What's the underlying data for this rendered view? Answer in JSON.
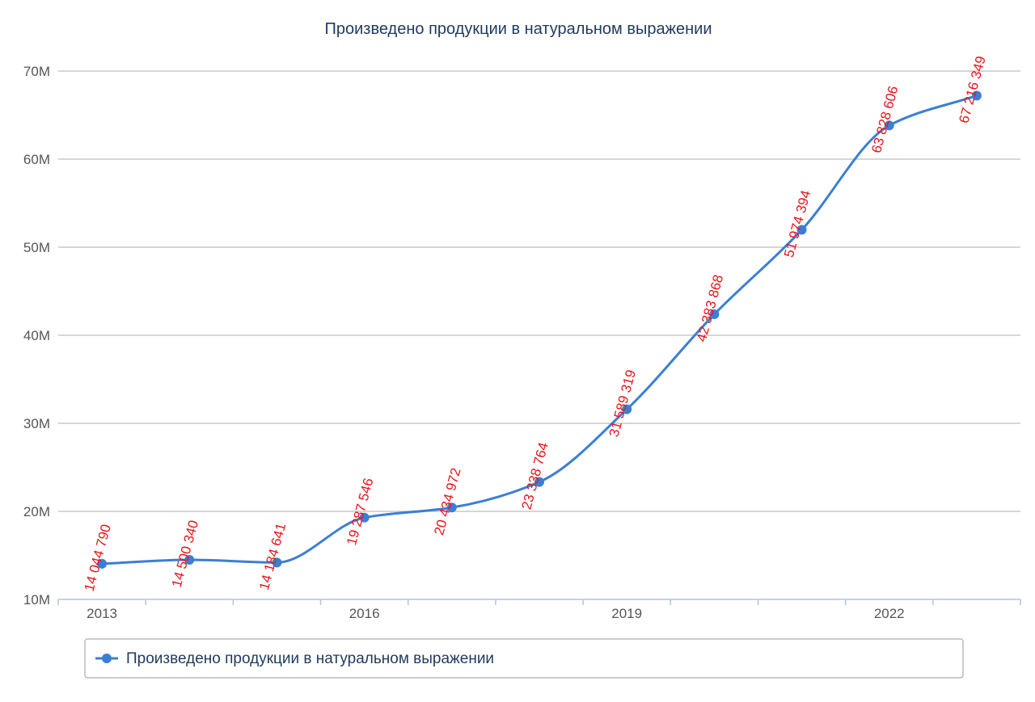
{
  "chart_data": {
    "type": "line",
    "title": "Произведено продукции в натуральном выражении",
    "categories": [
      "2013",
      "2014",
      "2015",
      "2016",
      "2017",
      "2018",
      "2019",
      "2020",
      "2021",
      "2022",
      "2023"
    ],
    "x_tick_labels": [
      "2013",
      "2016",
      "2019",
      "2022"
    ],
    "series": [
      {
        "name": "Произведено продукции в натуральном выражении",
        "color": "#3a7fd5",
        "values": [
          14044790,
          14500340,
          14184641,
          19287546,
          20434972,
          23338764,
          31589319,
          42383868,
          51974394,
          63828606,
          67216349
        ],
        "labels": [
          "14 044 790",
          "14 500 340",
          "14 184 641",
          "19 287 546",
          "20 434 972",
          "23 338 764",
          "31 589 319",
          "42 383 868",
          "51 974 394",
          "63 828 606",
          "67 216 349"
        ]
      }
    ],
    "y_ticks": [
      {
        "value": 10000000,
        "label": "10M"
      },
      {
        "value": 20000000,
        "label": "20M"
      },
      {
        "value": 30000000,
        "label": "30M"
      },
      {
        "value": 40000000,
        "label": "40M"
      },
      {
        "value": 50000000,
        "label": "50M"
      },
      {
        "value": 60000000,
        "label": "60M"
      },
      {
        "value": 70000000,
        "label": "70M"
      }
    ],
    "ylim": [
      10000000,
      70000000
    ],
    "grid": true,
    "legend_position": "bottom",
    "data_label_color": "#e8141c"
  }
}
